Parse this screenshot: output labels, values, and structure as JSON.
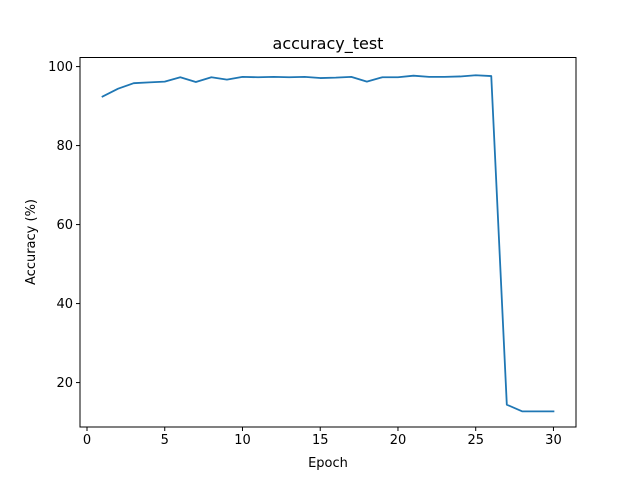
{
  "chart_data": {
    "type": "line",
    "title": "accuracy_test",
    "xlabel": "Epoch",
    "ylabel": "Accuracy (%)",
    "xlim": [
      -0.45,
      31.45
    ],
    "ylim": [
      8.75,
      102.3
    ],
    "xticks": [
      0,
      5,
      10,
      15,
      20,
      25,
      30
    ],
    "yticks": [
      20,
      40,
      60,
      80,
      100
    ],
    "grid": false,
    "series": [
      {
        "color": "#1f77b4",
        "x": [
          1,
          2,
          3,
          4,
          5,
          6,
          7,
          8,
          9,
          10,
          11,
          12,
          13,
          14,
          15,
          16,
          17,
          18,
          19,
          20,
          21,
          22,
          23,
          24,
          25,
          26,
          27,
          28,
          29,
          30
        ],
        "y": [
          92.4,
          94.4,
          95.8,
          96.0,
          96.2,
          97.3,
          96.1,
          97.3,
          96.7,
          97.4,
          97.3,
          97.4,
          97.3,
          97.4,
          97.1,
          97.2,
          97.4,
          96.2,
          97.3,
          97.3,
          97.7,
          97.4,
          97.4,
          97.5,
          97.8,
          97.6,
          14.4,
          12.7,
          12.7,
          12.7
        ]
      }
    ]
  }
}
